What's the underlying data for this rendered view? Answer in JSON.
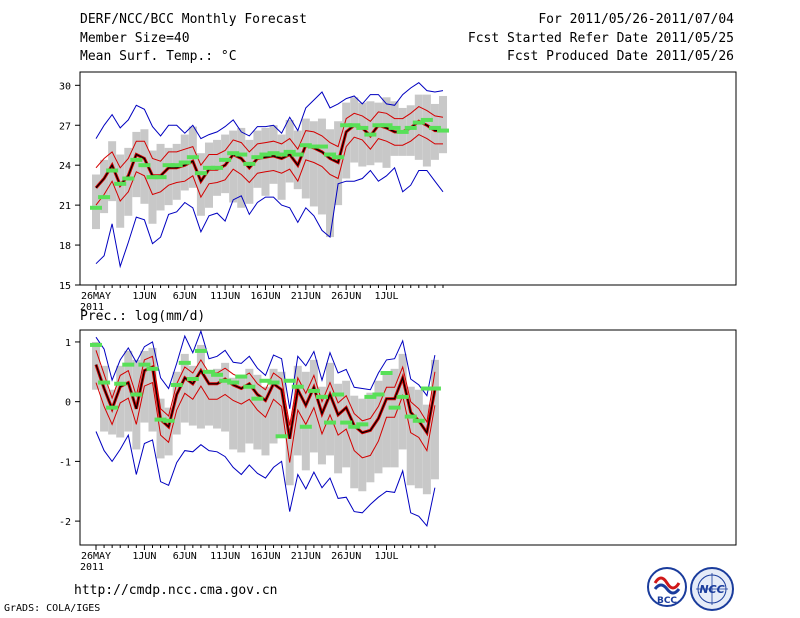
{
  "header": {
    "title": "DERF/NCC/BCC Monthly Forecast",
    "member_size": "Member Size=40",
    "variable": "Mean Surf. Temp.: °C",
    "period": "For 2011/05/26-2011/07/04",
    "started": "Fcst Started Refer Date 2011/05/25",
    "produced": "Fcst Produced Date 2011/05/26"
  },
  "footer": {
    "url": "http://cmdp.ncc.cma.gov.cn",
    "grads": "GrADS: COLA/IGES"
  },
  "logos": {
    "bcc": "BCC",
    "ncc": "NCC"
  },
  "colors": {
    "box": "#c8c8c8",
    "obs": "#58e058",
    "mean": "#000000",
    "std": "#d40000",
    "extreme": "#0000c0"
  },
  "chart_data": [
    {
      "type": "line",
      "title": "Mean Surf. Temp.: °C",
      "x_tick_labels": [
        "26MAY",
        "1JUN",
        "6JUN",
        "11JUN",
        "16JUN",
        "21JUN",
        "26JUN",
        "1JUL"
      ],
      "x_tick_days": [
        0,
        6,
        11,
        16,
        21,
        26,
        31,
        36
      ],
      "year_label": "2011",
      "ylim": [
        15,
        31
      ],
      "yticks": [
        15,
        18,
        21,
        24,
        27,
        30
      ],
      "series": {
        "mean": [
          22.3,
          23,
          24,
          22.5,
          23.2,
          24.8,
          24.5,
          23.2,
          23.2,
          23.8,
          23.8,
          24,
          24.3,
          22.8,
          23.7,
          23.7,
          24,
          24.8,
          24.5,
          23.8,
          24.5,
          24.6,
          24.7,
          24.5,
          24.8,
          24,
          25.5,
          25.3,
          25,
          24.5,
          24.2,
          26.5,
          27,
          26.8,
          26.2,
          27,
          26.8,
          26.5,
          26.5,
          26.8,
          27.3,
          27,
          26.6,
          26.6
        ],
        "upper_std": [
          23.8,
          24.5,
          25,
          23.8,
          24.5,
          25.8,
          25.8,
          24.5,
          24.3,
          25,
          25,
          25.2,
          25.4,
          24,
          24.8,
          24.8,
          25.1,
          25.9,
          25.7,
          25,
          25.6,
          25.7,
          25.8,
          25.6,
          26,
          25.2,
          26.6,
          26.5,
          26.2,
          25.7,
          25.4,
          27.5,
          27.9,
          27.7,
          27.3,
          28,
          27.9,
          27.5,
          27.5,
          27.9,
          28.4,
          28.1,
          27.7,
          27.6
        ],
        "lower_std": [
          21,
          21.8,
          22.8,
          21.3,
          22,
          23.5,
          23.2,
          21.8,
          22,
          22.5,
          22.7,
          22.8,
          23.2,
          21.6,
          22.6,
          22.7,
          22.9,
          23.7,
          23.3,
          22.7,
          23.4,
          23.5,
          23.6,
          23.4,
          23.7,
          22.8,
          24.4,
          24.2,
          23.9,
          23.3,
          23,
          25.4,
          26.1,
          25.9,
          25.2,
          26,
          25.8,
          25.5,
          25.5,
          25.8,
          26.3,
          26,
          25.6,
          25.6
        ],
        "max": [
          26,
          27,
          27.8,
          26.8,
          27.4,
          28.5,
          28.2,
          26.9,
          26.2,
          27,
          27,
          26.4,
          27,
          26,
          26.3,
          26.5,
          26.9,
          27.4,
          26.5,
          26.2,
          26.9,
          26.9,
          27,
          26.4,
          27.6,
          26.6,
          28.3,
          28.9,
          29.5,
          28.3,
          28.6,
          29,
          29.2,
          28.6,
          29.3,
          29.3,
          28.6,
          28.5,
          29.3,
          29.8,
          30.2,
          29.6,
          29.5,
          29.6
        ],
        "min": [
          16.6,
          17.2,
          19.6,
          16.4,
          18.2,
          20.1,
          19.9,
          18.1,
          18.6,
          20.3,
          20.5,
          21.2,
          20.8,
          19,
          20.2,
          20.4,
          19.8,
          21.4,
          21.7,
          20.3,
          21.2,
          21.6,
          21.6,
          21,
          20.8,
          19.7,
          20.8,
          20.2,
          19.1,
          18.6,
          22.6,
          22.8,
          22.8,
          23,
          23.6,
          22.8,
          23.2,
          23.8,
          22,
          22.5,
          23.6,
          23.6,
          22.8,
          22
        ],
        "box_top": [
          23.3,
          24.4,
          25.8,
          24.8,
          25.3,
          26.5,
          26.7,
          25.1,
          25.6,
          25.3,
          25.6,
          26.3,
          26.9,
          24.9,
          25.7,
          25.9,
          26.3,
          26.6,
          26.8,
          25.9,
          26.6,
          26.8,
          27,
          26.3,
          27.4,
          26.6,
          27.5,
          27.3,
          27.5,
          26.7,
          27.3,
          28.7,
          29.1,
          28.7,
          28.8,
          28.7,
          29.1,
          28.8,
          28.3,
          28.5,
          29.3,
          29.3,
          28.6,
          29.2
        ],
        "box_bottom": [
          19.2,
          20.4,
          21.3,
          19.3,
          20.2,
          21.6,
          21.1,
          19.6,
          20.6,
          21,
          21.4,
          22.1,
          22.3,
          20.2,
          20.8,
          21.7,
          21.9,
          21.2,
          20.8,
          21.1,
          22.3,
          21.7,
          22.6,
          21.4,
          22.7,
          22.2,
          21.5,
          20.9,
          20.3,
          18.6,
          21,
          23,
          24.2,
          23.9,
          24,
          24.2,
          23.8,
          24.7,
          24.7,
          24.7,
          24.4,
          23.9,
          24.4,
          24.9
        ],
        "observed": [
          20.8,
          21.6,
          23.6,
          22.6,
          23,
          24.4,
          24,
          23.1,
          23.1,
          24,
          24,
          24.2,
          24.6,
          23.4,
          23.8,
          23.8,
          24.4,
          24.9,
          24.8,
          24.1,
          24.6,
          24.8,
          24.9,
          24.8,
          25,
          24.8,
          25.5,
          25.4,
          25.4,
          24.8,
          24.6,
          27,
          27,
          26.8,
          26.3,
          27,
          27,
          26.8,
          26.5,
          26.8,
          27.2,
          27.4,
          26.8,
          26.6
        ]
      }
    },
    {
      "type": "line",
      "title": "Prec.: log(mm/d)",
      "x_tick_labels": [
        "26MAY",
        "1JUN",
        "6JUN",
        "11JUN",
        "16JUN",
        "21JUN",
        "26JUN",
        "1JUL"
      ],
      "x_tick_days": [
        0,
        6,
        11,
        16,
        21,
        26,
        31,
        36
      ],
      "year_label": "2011",
      "ylim": [
        -2.4,
        1.2
      ],
      "yticks": [
        -2,
        -1,
        0,
        1
      ],
      "series": {
        "mean": [
          0.62,
          0.22,
          -0.12,
          0.25,
          0.32,
          -0.12,
          0.52,
          0.58,
          -0.3,
          -0.42,
          0.12,
          0.4,
          0.3,
          0.52,
          0.3,
          0.3,
          0.38,
          0.28,
          0.22,
          0.3,
          0.12,
          0.02,
          0.3,
          0.2,
          -0.62,
          0.2,
          -0.06,
          0.24,
          -0.2,
          0.12,
          -0.22,
          -0.1,
          -0.4,
          -0.52,
          -0.48,
          -0.28,
          0.05,
          0.05,
          0.4,
          -0.18,
          -0.32,
          -0.52,
          0.2
        ],
        "upper_std": [
          0.86,
          0.46,
          0.06,
          0.44,
          0.52,
          0.1,
          0.7,
          0.76,
          -0.12,
          -0.24,
          0.3,
          0.58,
          0.48,
          0.7,
          0.48,
          0.48,
          0.56,
          0.46,
          0.4,
          0.48,
          0.3,
          0.2,
          0.48,
          0.38,
          -0.4,
          0.4,
          0.14,
          0.44,
          0,
          0.32,
          -0.02,
          0.1,
          -0.2,
          -0.32,
          -0.28,
          -0.08,
          0.24,
          0.24,
          0.58,
          0,
          -0.12,
          -0.34,
          0.5
        ],
        "lower_std": [
          0.32,
          -0.08,
          -0.38,
          -0.02,
          0.06,
          -0.38,
          0.26,
          0.32,
          -0.56,
          -0.68,
          -0.14,
          0.14,
          0.04,
          0.26,
          0.04,
          0.04,
          0.12,
          0.02,
          -0.04,
          0.04,
          -0.14,
          -0.26,
          0.04,
          -0.08,
          -1.02,
          -0.14,
          -0.38,
          -0.1,
          -0.54,
          -0.22,
          -0.56,
          -0.46,
          -0.82,
          -0.94,
          -0.9,
          -0.66,
          -0.26,
          -0.26,
          0.1,
          -0.52,
          -0.6,
          -0.82,
          -0.06
        ],
        "max": [
          1.08,
          0.88,
          0.36,
          0.7,
          0.9,
          0.66,
          0.92,
          1.0,
          0.4,
          0.22,
          0.64,
          1.1,
          0.82,
          1.18,
          0.72,
          0.76,
          0.86,
          0.66,
          0.64,
          0.76,
          0.56,
          0.44,
          0.78,
          0.72,
          -0.12,
          0.76,
          0.6,
          0.84,
          0.36,
          0.82,
          0.48,
          0.54,
          0.24,
          0.22,
          0.2,
          0.48,
          0.7,
          0.72,
          1.02,
          0.38,
          0.28,
          0.1,
          0.78
        ],
        "min": [
          -0.5,
          -0.82,
          -1,
          -0.8,
          -0.56,
          -1.22,
          -0.7,
          -0.64,
          -1.34,
          -1.4,
          -1.02,
          -0.82,
          -0.84,
          -0.72,
          -0.82,
          -0.84,
          -0.92,
          -1.1,
          -1.22,
          -1.06,
          -1.2,
          -1.28,
          -1.1,
          -1.0,
          -1.84,
          -1.22,
          -1.46,
          -1.18,
          -1.44,
          -1.28,
          -1.62,
          -1.6,
          -1.84,
          -1.86,
          -1.72,
          -1.6,
          -1.5,
          -1.52,
          -1.16,
          -1.86,
          -1.92,
          -2.08,
          -1.44
        ],
        "box_top": [
          1,
          0.6,
          0.2,
          0.6,
          0.85,
          0.7,
          0.85,
          0.9,
          0.05,
          -0.1,
          0.5,
          0.8,
          0.6,
          0.95,
          0.5,
          0.55,
          0.65,
          0.4,
          0.45,
          0.55,
          0.45,
          0.25,
          0.55,
          0.5,
          -0.3,
          0.6,
          0.5,
          0.7,
          0.25,
          0.65,
          0.3,
          0.35,
          0.1,
          0.05,
          0.15,
          0.35,
          0.5,
          0.55,
          0.8,
          0.25,
          0.2,
          -0.05,
          0.7
        ],
        "box_bottom": [
          0.2,
          -0.5,
          -0.55,
          -0.6,
          -0.5,
          -0.8,
          -0.35,
          -0.5,
          -0.95,
          -0.9,
          -0.55,
          -0.35,
          -0.4,
          -0.45,
          -0.4,
          -0.45,
          -0.5,
          -0.8,
          -0.85,
          -0.7,
          -0.8,
          -0.9,
          -0.7,
          -0.6,
          -1.4,
          -0.9,
          -1.15,
          -0.85,
          -1.05,
          -0.9,
          -1.2,
          -1.1,
          -1.45,
          -1.5,
          -1.35,
          -1.2,
          -1.1,
          -1.1,
          -0.8,
          -1.4,
          -1.45,
          -1.55,
          -1.3
        ],
        "observed": [
          0.95,
          0.32,
          -0.1,
          0.3,
          0.62,
          0.12,
          0.62,
          0.55,
          -0.3,
          -0.32,
          0.28,
          0.65,
          0.38,
          0.85,
          0.5,
          0.45,
          0.35,
          0.32,
          0.42,
          0.25,
          0.05,
          0.35,
          0.32,
          -0.58,
          0.35,
          0.25,
          -0.42,
          0.18,
          0.08,
          -0.35,
          0.12,
          -0.35,
          -0.42,
          -0.38,
          0.08,
          0.12,
          0.48,
          -0.1,
          0.08,
          -0.25,
          -0.32,
          0.22,
          0.22
        ]
      }
    }
  ]
}
